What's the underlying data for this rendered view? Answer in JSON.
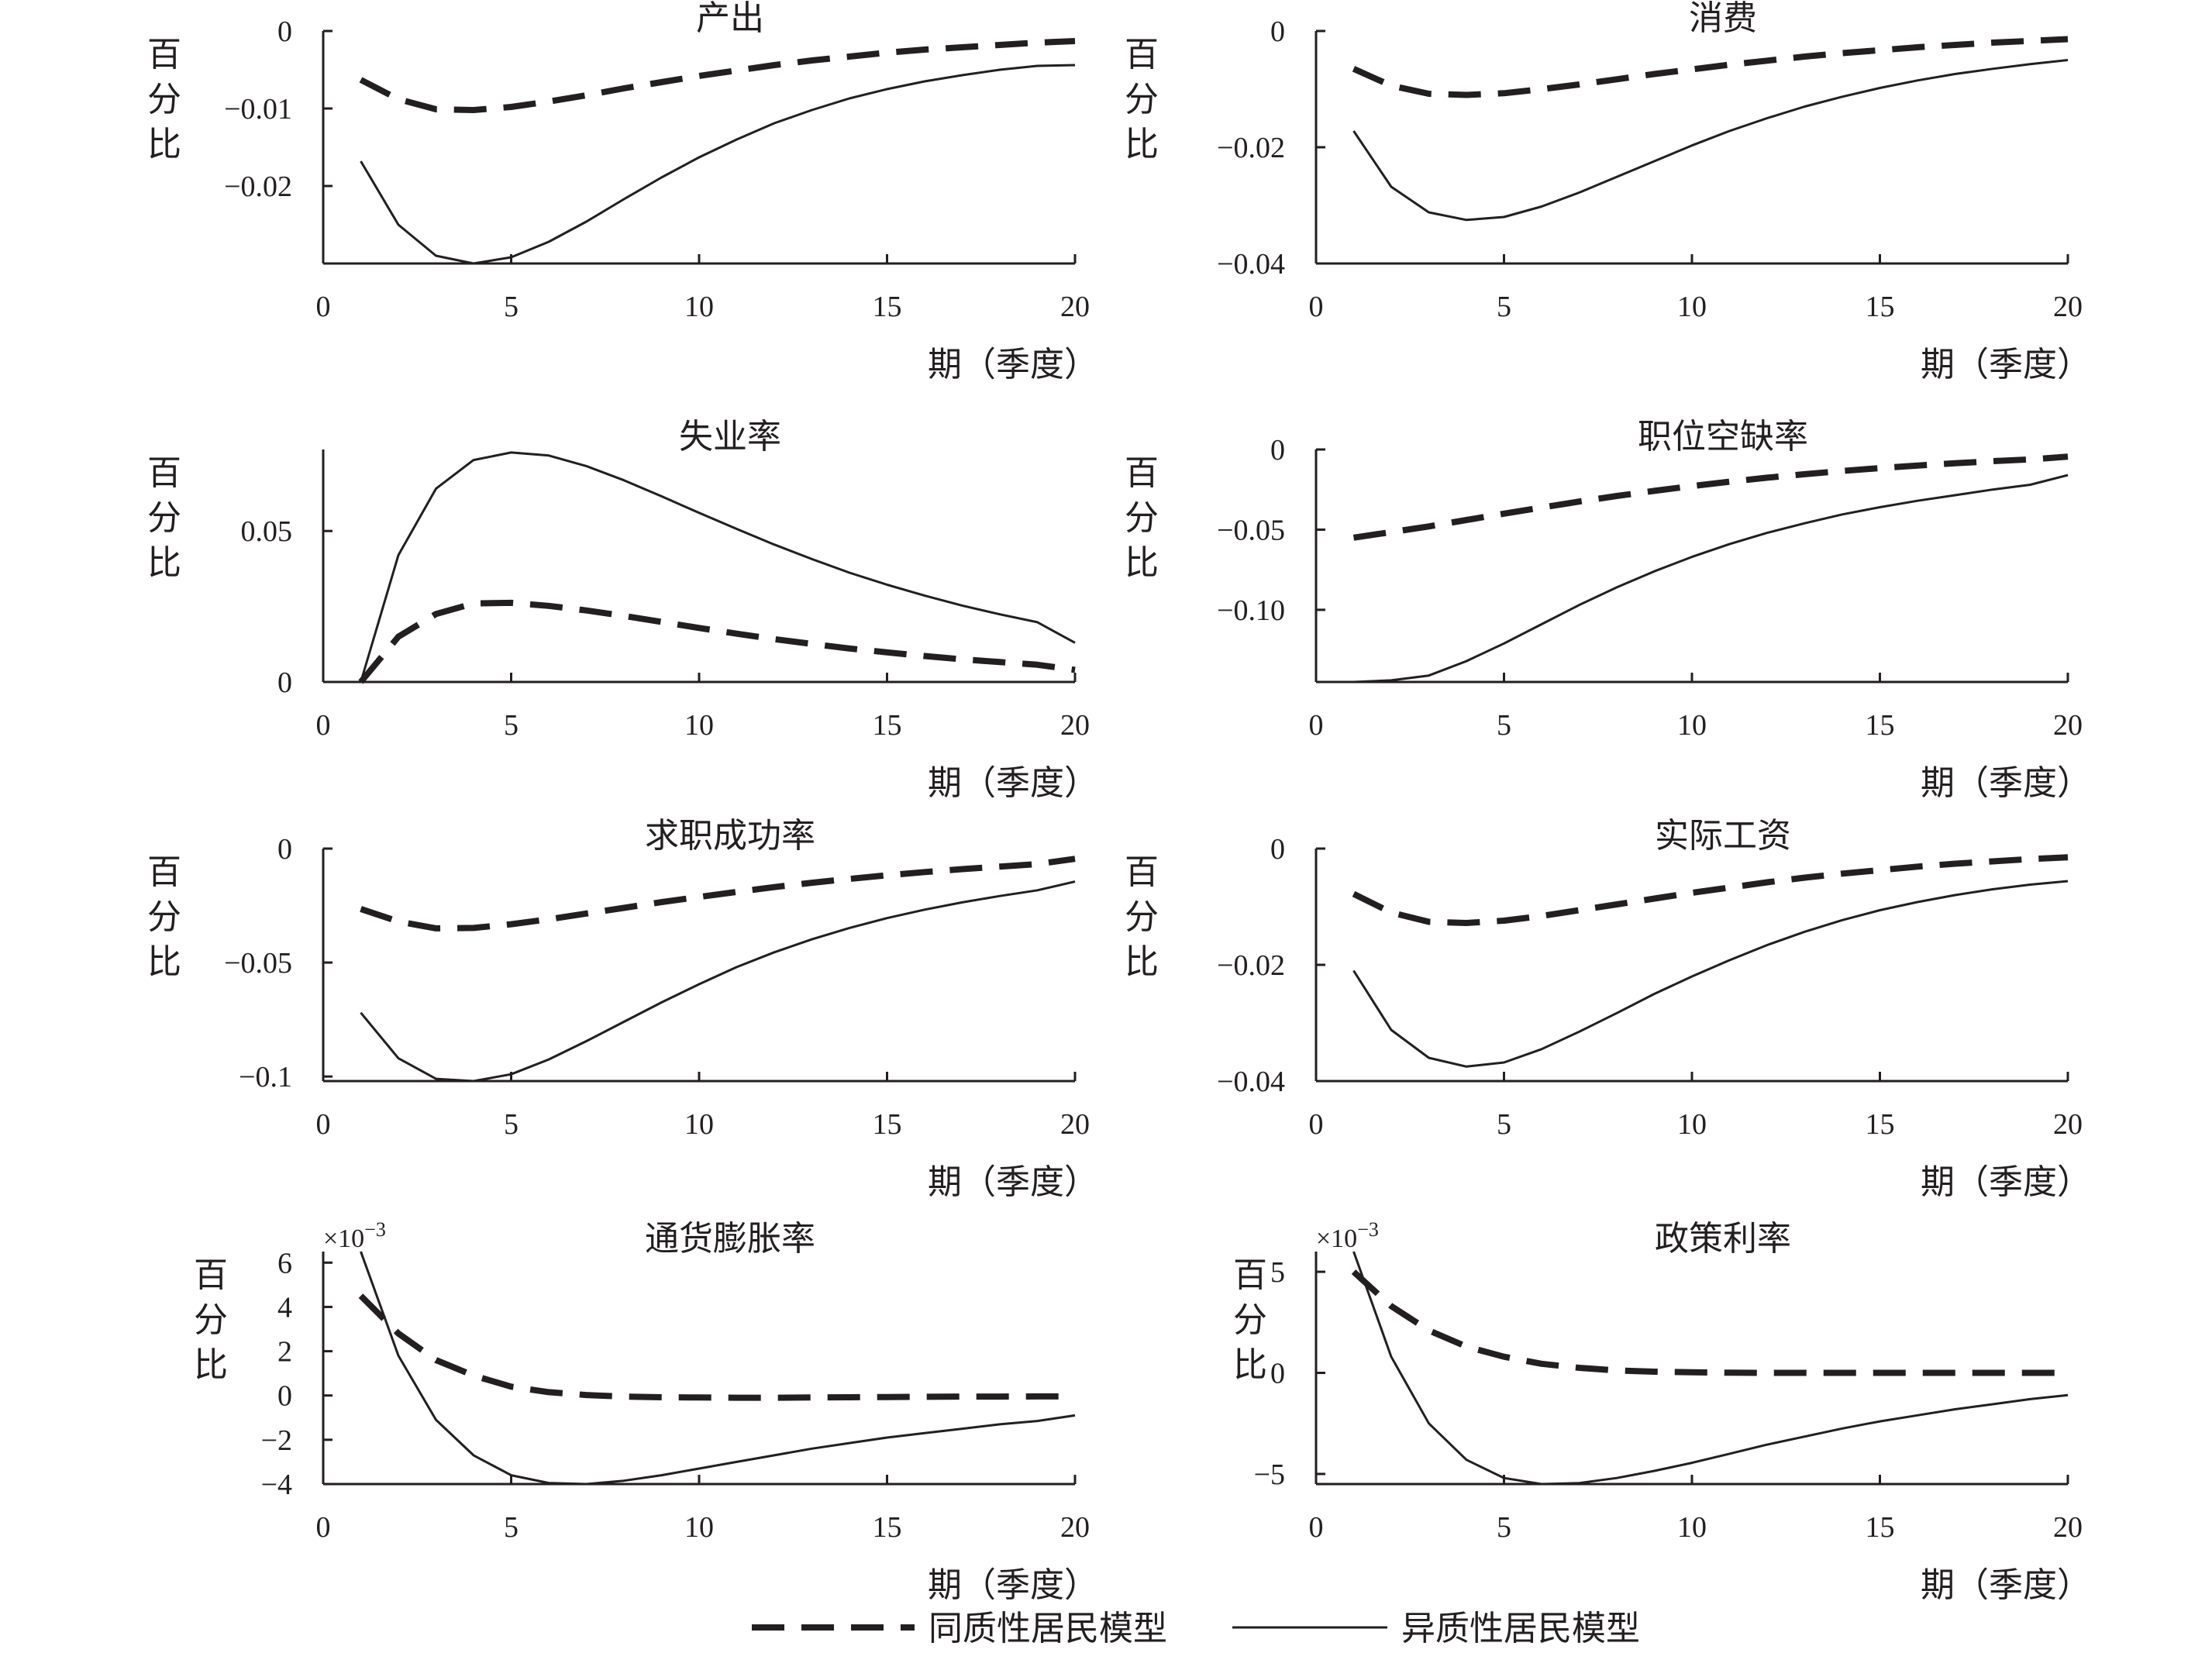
{
  "chart_data": [
    {
      "type": "line",
      "title": "产出",
      "ylabel": "百分比",
      "xlabel": "期（季度）",
      "xlim": [
        0,
        20
      ],
      "ylim": [
        -0.03,
        0
      ],
      "xticks": [
        "0",
        "5",
        "10",
        "15",
        "20"
      ],
      "yticks": [
        {
          "v": 0,
          "label": "0"
        },
        {
          "v": -0.01,
          "label": "−0.01"
        },
        {
          "v": -0.02,
          "label": "−0.02"
        }
      ],
      "x": [
        1,
        2,
        3,
        4,
        5,
        6,
        7,
        8,
        9,
        10,
        11,
        12,
        13,
        14,
        15,
        16,
        17,
        18,
        19,
        20
      ],
      "series": [
        {
          "name": "同质性居民模型",
          "style": "dashed",
          "values": [
            -0.0063,
            -0.0088,
            -0.0101,
            -0.0102,
            -0.0098,
            -0.0091,
            -0.0083,
            -0.0074,
            -0.0066,
            -0.0058,
            -0.0051,
            -0.0044,
            -0.0038,
            -0.0033,
            -0.0028,
            -0.0024,
            -0.0021,
            -0.0018,
            -0.0015,
            -0.0013
          ]
        },
        {
          "name": "异质性居民模型",
          "style": "solid",
          "values": [
            -0.0168,
            -0.025,
            -0.029,
            -0.03,
            -0.0292,
            -0.0272,
            -0.0246,
            -0.0217,
            -0.0189,
            -0.0163,
            -0.014,
            -0.0119,
            -0.0102,
            -0.0087,
            -0.0075,
            -0.0065,
            -0.0057,
            -0.005,
            -0.0045,
            -0.0044
          ]
        }
      ]
    },
    {
      "type": "line",
      "title": "消费",
      "ylabel": "百分比",
      "xlabel": "期（季度）",
      "xlim": [
        0,
        20
      ],
      "ylim": [
        -0.04,
        0
      ],
      "xticks": [
        "0",
        "5",
        "10",
        "15",
        "20"
      ],
      "yticks": [
        {
          "v": 0,
          "label": "0"
        },
        {
          "v": -0.02,
          "label": "−0.02"
        },
        {
          "v": -0.04,
          "label": "−0.04"
        }
      ],
      "x": [
        1,
        2,
        3,
        4,
        5,
        6,
        7,
        8,
        9,
        10,
        11,
        12,
        13,
        14,
        15,
        16,
        17,
        18,
        19,
        20
      ],
      "series": [
        {
          "name": "同质性居民模型",
          "style": "dashed",
          "values": [
            -0.0065,
            -0.0094,
            -0.0108,
            -0.011,
            -0.0107,
            -0.01,
            -0.0092,
            -0.0083,
            -0.0074,
            -0.0066,
            -0.0058,
            -0.0051,
            -0.0044,
            -0.0038,
            -0.0033,
            -0.0028,
            -0.0024,
            -0.002,
            -0.0017,
            -0.0014
          ]
        },
        {
          "name": "异质性居民模型",
          "style": "solid",
          "values": [
            -0.0172,
            -0.0268,
            -0.0312,
            -0.0325,
            -0.032,
            -0.0302,
            -0.0278,
            -0.0251,
            -0.0224,
            -0.0197,
            -0.0172,
            -0.015,
            -0.013,
            -0.0113,
            -0.0098,
            -0.0085,
            -0.0074,
            -0.0065,
            -0.0057,
            -0.005
          ]
        }
      ]
    },
    {
      "type": "line",
      "title": "失业率",
      "ylabel": "百分比",
      "xlabel": "期（季度）",
      "xlim": [
        0,
        20
      ],
      "ylim": [
        0,
        0.077
      ],
      "xticks": [
        "0",
        "5",
        "10",
        "15",
        "20"
      ],
      "yticks": [
        {
          "v": 0,
          "label": "0"
        },
        {
          "v": 0.05,
          "label": "0.05"
        }
      ],
      "x": [
        1,
        2,
        3,
        4,
        5,
        6,
        7,
        8,
        9,
        10,
        11,
        12,
        13,
        14,
        15,
        16,
        17,
        18,
        19,
        20
      ],
      "series": [
        {
          "name": "同质性居民模型",
          "style": "dashed",
          "values": [
            0,
            0.015,
            0.0225,
            0.026,
            0.0262,
            0.0252,
            0.0237,
            0.0219,
            0.0199,
            0.0179,
            0.016,
            0.0142,
            0.0126,
            0.0111,
            0.0098,
            0.0086,
            0.0075,
            0.0066,
            0.0057,
            0.004
          ]
        },
        {
          "name": "异质性居民模型",
          "style": "solid",
          "values": [
            0,
            0.042,
            0.064,
            0.0735,
            0.076,
            0.075,
            0.0715,
            0.0668,
            0.0615,
            0.056,
            0.0507,
            0.0455,
            0.0407,
            0.0362,
            0.0322,
            0.0286,
            0.0253,
            0.0224,
            0.0198,
            0.013
          ]
        }
      ]
    },
    {
      "type": "line",
      "title": "职位空缺率",
      "ylabel": "百分比",
      "xlabel": "期（季度）",
      "xlim": [
        0,
        20
      ],
      "ylim": [
        -0.145,
        0
      ],
      "xticks": [
        "0",
        "5",
        "10",
        "15",
        "20"
      ],
      "yticks": [
        {
          "v": 0,
          "label": "0"
        },
        {
          "v": -0.05,
          "label": "−0.05"
        },
        {
          "v": -0.1,
          "label": "−0.10"
        }
      ],
      "x": [
        1,
        2,
        3,
        4,
        5,
        6,
        7,
        8,
        9,
        10,
        11,
        12,
        13,
        14,
        15,
        16,
        17,
        18,
        19,
        20
      ],
      "series": [
        {
          "name": "同质性居民模型",
          "style": "dashed",
          "values": [
            -0.055,
            -0.0515,
            -0.048,
            -0.044,
            -0.04,
            -0.0362,
            -0.0325,
            -0.029,
            -0.0258,
            -0.0228,
            -0.0201,
            -0.0176,
            -0.0154,
            -0.0134,
            -0.0116,
            -0.01,
            -0.0086,
            -0.0073,
            -0.0062,
            -0.0045
          ]
        },
        {
          "name": "异质性居民模型",
          "style": "solid",
          "values": [
            -0.145,
            -0.144,
            -0.141,
            -0.132,
            -0.121,
            -0.109,
            -0.097,
            -0.086,
            -0.076,
            -0.067,
            -0.059,
            -0.052,
            -0.046,
            -0.0405,
            -0.036,
            -0.032,
            -0.0285,
            -0.025,
            -0.022,
            -0.016
          ]
        }
      ]
    },
    {
      "type": "line",
      "title": "求职成功率",
      "ylabel": "百分比",
      "xlabel": "期（季度）",
      "xlim": [
        0,
        20
      ],
      "ylim": [
        -0.102,
        0
      ],
      "xticks": [
        "0",
        "5",
        "10",
        "15",
        "20"
      ],
      "yticks": [
        {
          "v": 0,
          "label": "0"
        },
        {
          "v": -0.05,
          "label": "−0.05"
        },
        {
          "v": -0.1,
          "label": "−0.1"
        }
      ],
      "x": [
        1,
        2,
        3,
        4,
        5,
        6,
        7,
        8,
        9,
        10,
        11,
        12,
        13,
        14,
        15,
        16,
        17,
        18,
        19,
        20
      ],
      "series": [
        {
          "name": "同质性居民模型",
          "style": "dashed",
          "values": [
            -0.0265,
            -0.032,
            -0.035,
            -0.0348,
            -0.0332,
            -0.031,
            -0.0285,
            -0.026,
            -0.0235,
            -0.0212,
            -0.019,
            -0.0169,
            -0.015,
            -0.0133,
            -0.0117,
            -0.0103,
            -0.009,
            -0.0079,
            -0.0068,
            -0.0045
          ]
        },
        {
          "name": "异质性居民模型",
          "style": "solid",
          "values": [
            -0.072,
            -0.092,
            -0.101,
            -0.102,
            -0.099,
            -0.0925,
            -0.0845,
            -0.076,
            -0.0675,
            -0.0595,
            -0.052,
            -0.0455,
            -0.0398,
            -0.0348,
            -0.0305,
            -0.0268,
            -0.0236,
            -0.0208,
            -0.0183,
            -0.0145
          ]
        }
      ]
    },
    {
      "type": "line",
      "title": "实际工资",
      "ylabel": "百分比",
      "xlabel": "期（季度）",
      "xlim": [
        0,
        20
      ],
      "ylim": [
        -0.04,
        0
      ],
      "xticks": [
        "0",
        "5",
        "10",
        "15",
        "20"
      ],
      "yticks": [
        {
          "v": 0,
          "label": "0"
        },
        {
          "v": -0.02,
          "label": "−0.02"
        },
        {
          "v": -0.04,
          "label": "−0.04"
        }
      ],
      "x": [
        1,
        2,
        3,
        4,
        5,
        6,
        7,
        8,
        9,
        10,
        11,
        12,
        13,
        14,
        15,
        16,
        17,
        18,
        19,
        20
      ],
      "series": [
        {
          "name": "同质性居民模型",
          "style": "dashed",
          "values": [
            -0.0078,
            -0.011,
            -0.0126,
            -0.0128,
            -0.0124,
            -0.0116,
            -0.0106,
            -0.0096,
            -0.0086,
            -0.0076,
            -0.0067,
            -0.0058,
            -0.005,
            -0.0043,
            -0.0037,
            -0.0031,
            -0.0026,
            -0.0022,
            -0.0018,
            -0.0015
          ]
        },
        {
          "name": "异质性居民模型",
          "style": "solid",
          "values": [
            -0.021,
            -0.0312,
            -0.036,
            -0.0375,
            -0.0368,
            -0.0345,
            -0.0315,
            -0.0283,
            -0.025,
            -0.022,
            -0.0192,
            -0.0166,
            -0.0143,
            -0.0123,
            -0.0106,
            -0.0092,
            -0.008,
            -0.007,
            -0.0062,
            -0.0056
          ]
        }
      ]
    },
    {
      "type": "line",
      "title": "通货膨胀率",
      "ylabel": "百分比",
      "xlabel": "期（季度）",
      "scale_label": "×10",
      "scale_exponent": "−3",
      "xlim": [
        0,
        20
      ],
      "ylim": [
        -4,
        6.5
      ],
      "xticks": [
        "0",
        "5",
        "10",
        "15",
        "20"
      ],
      "yticks": [
        {
          "v": 6,
          "label": "6"
        },
        {
          "v": 4,
          "label": "4"
        },
        {
          "v": 2,
          "label": "2"
        },
        {
          "v": 0,
          "label": "0"
        },
        {
          "v": -2,
          "label": "−2"
        },
        {
          "v": -4,
          "label": "−4"
        }
      ],
      "x": [
        1,
        2,
        3,
        4,
        5,
        6,
        7,
        8,
        9,
        10,
        11,
        12,
        13,
        14,
        15,
        16,
        17,
        18,
        19,
        20
      ],
      "series": [
        {
          "name": "同质性居民模型",
          "style": "dashed",
          "values": [
            4.5,
            2.8,
            1.6,
            0.9,
            0.4,
            0.15,
            0.02,
            -0.05,
            -0.08,
            -0.09,
            -0.1,
            -0.1,
            -0.09,
            -0.08,
            -0.07,
            -0.06,
            -0.05,
            -0.05,
            -0.04,
            -0.04
          ]
        },
        {
          "name": "异质性居民模型",
          "style": "solid",
          "values": [
            6.9,
            1.8,
            -1.1,
            -2.7,
            -3.6,
            -3.95,
            -4.0,
            -3.85,
            -3.6,
            -3.3,
            -3.0,
            -2.7,
            -2.4,
            -2.15,
            -1.9,
            -1.7,
            -1.5,
            -1.3,
            -1.15,
            -0.9
          ]
        }
      ]
    },
    {
      "type": "line",
      "title": "政策利率",
      "ylabel": "百分比",
      "xlabel": "期（季度）",
      "scale_label": "×10",
      "scale_exponent": "−3",
      "xlim": [
        0,
        20
      ],
      "ylim": [
        -5.5,
        6
      ],
      "xticks": [
        "0",
        "5",
        "10",
        "15",
        "20"
      ],
      "yticks": [
        {
          "v": 5,
          "label": "5"
        },
        {
          "v": 0,
          "label": "0"
        },
        {
          "v": -5,
          "label": "−5"
        }
      ],
      "x": [
        1,
        2,
        3,
        4,
        5,
        6,
        7,
        8,
        9,
        10,
        11,
        12,
        13,
        14,
        15,
        16,
        17,
        18,
        19,
        20
      ],
      "series": [
        {
          "name": "同质性居民模型",
          "style": "dashed",
          "values": [
            5.0,
            3.3,
            2.1,
            1.3,
            0.8,
            0.45,
            0.25,
            0.12,
            0.06,
            0.03,
            0.01,
            0,
            0,
            0,
            0,
            0,
            0,
            0,
            0,
            0
          ]
        },
        {
          "name": "异质性居民模型",
          "style": "solid",
          "values": [
            6.0,
            0.8,
            -2.5,
            -4.3,
            -5.2,
            -5.5,
            -5.45,
            -5.2,
            -4.85,
            -4.45,
            -4.0,
            -3.55,
            -3.15,
            -2.75,
            -2.4,
            -2.1,
            -1.8,
            -1.55,
            -1.3,
            -1.1
          ]
        }
      ]
    }
  ],
  "legend": [
    {
      "label": "同质性居民模型",
      "style": "dashed"
    },
    {
      "label": "异质性居民模型",
      "style": "solid"
    }
  ]
}
